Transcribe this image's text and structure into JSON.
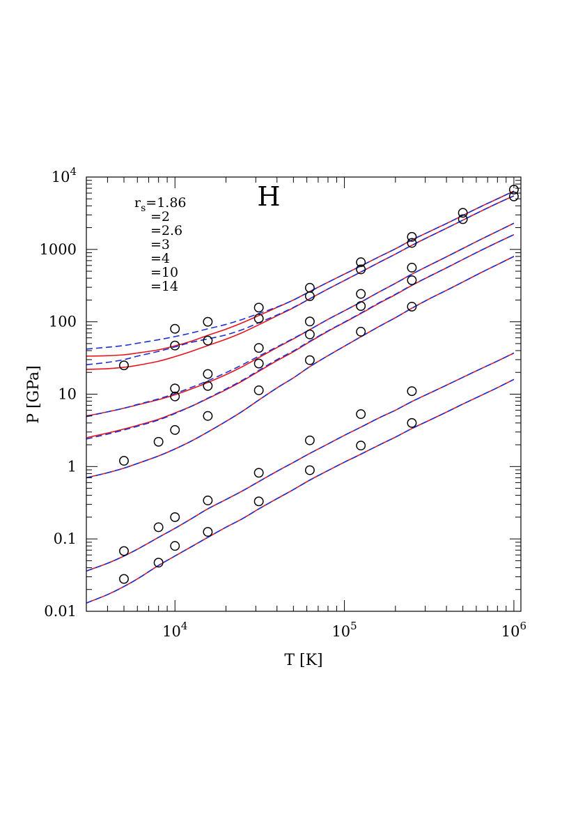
{
  "chart_data": {
    "type": "line",
    "title": "",
    "annotation": "H",
    "xlabel": "T [K]",
    "ylabel": "P [GPa]",
    "xscale": "log",
    "yscale": "log",
    "xlim": [
      3000,
      1100000
    ],
    "ylim": [
      0.01,
      10000
    ],
    "grid": false,
    "x_ticks": [
      {
        "value": 10000,
        "base": "10",
        "exp": "4"
      },
      {
        "value": 100000,
        "base": "10",
        "exp": "5"
      },
      {
        "value": 1000000,
        "base": "10",
        "exp": "6"
      }
    ],
    "y_ticks": [
      {
        "value": 0.01,
        "label": "0.01"
      },
      {
        "value": 0.1,
        "label": "0.1"
      },
      {
        "value": 1,
        "label": "1"
      },
      {
        "value": 10,
        "label": "10"
      },
      {
        "value": 100,
        "label": "100"
      },
      {
        "value": 1000,
        "label": "1000"
      },
      {
        "value": 10000,
        "base": "10",
        "exp": "4"
      }
    ],
    "legend": {
      "placement": "top-left",
      "symbol": "r",
      "subscript": "s",
      "entries": [
        "=1.86",
        "=2",
        "=2.6",
        "=3",
        "=4",
        "=10",
        "=14"
      ]
    },
    "colors": {
      "model_solid": "#e8141c",
      "model_dashed": "#1a2fd6",
      "points": "#000000"
    },
    "x_grid": [
      3000,
      4000,
      5000,
      6000,
      8000,
      10000,
      12500,
      15625,
      20000,
      25000,
      31250,
      40000,
      50000,
      62500,
      80000,
      100000,
      125000,
      160000,
      200000,
      250000,
      320000,
      400000,
      500000,
      640000,
      800000,
      1000000
    ],
    "series": [
      {
        "name": "1.86",
        "solid": [
          33.5,
          34.0,
          35.0,
          37.0,
          41.0,
          46.5,
          54.0,
          65.0,
          79.0,
          97.0,
          122.0,
          158.0,
          200.0,
          262.0,
          352.0,
          456.0,
          590.0,
          790.0,
          1020.0,
          1350.0,
          1780.0,
          2280.0,
          2950.0,
          3920.0,
          5000.0,
          6400.0
        ],
        "dashed": [
          42.0,
          44.5,
          47.0,
          50.5,
          56.5,
          62.5,
          70.0,
          80.0,
          92.0,
          108.0,
          130.0,
          160.0,
          200.0,
          262.0,
          352.0,
          456.0,
          590.0,
          790.0,
          1020.0,
          1350.0,
          1780.0,
          2280.0,
          2950.0,
          3920.0,
          5000.0,
          6400.0
        ],
        "points": [
          [
            10000,
            80.0
          ],
          [
            15625,
            100.0
          ],
          [
            31250,
            157.0
          ],
          [
            62500,
            295.0
          ],
          [
            125000,
            665.0
          ],
          [
            250000,
            1490.0
          ],
          [
            500000,
            3200.0
          ],
          [
            1000000,
            6700.0
          ]
        ]
      },
      {
        "name": "2",
        "solid": [
          22.0,
          22.5,
          23.5,
          25.0,
          28.5,
          33.0,
          39.0,
          47.0,
          57.5,
          71.0,
          91.0,
          121.0,
          156.0,
          208.0,
          284.0,
          372.0,
          488.0,
          660.0,
          862.0,
          1140.0,
          1520.0,
          1960.0,
          2540.0,
          3380.0,
          4340.0,
          5500.0
        ],
        "dashed": [
          25.5,
          27.5,
          30.0,
          33.5,
          39.0,
          45.0,
          52.0,
          58.0,
          66.0,
          78.0,
          97.0,
          124.0,
          158.0,
          208.0,
          284.0,
          372.0,
          488.0,
          660.0,
          862.0,
          1140.0,
          1520.0,
          1960.0,
          2540.0,
          3380.0,
          4340.0,
          5500.0
        ],
        "points": [
          [
            5000,
            25.0
          ],
          [
            10000,
            47.0
          ],
          [
            15625,
            55.0
          ],
          [
            31250,
            111.0
          ],
          [
            62500,
            226.0
          ],
          [
            125000,
            530.0
          ],
          [
            250000,
            1230.0
          ],
          [
            500000,
            2620.0
          ],
          [
            1000000,
            5400.0
          ]
        ]
      },
      {
        "name": "2.6",
        "solid": [
          5.0,
          5.7,
          6.4,
          7.1,
          8.4,
          9.8,
          11.8,
          14.5,
          18.6,
          24.0,
          32.0,
          44.0,
          58.0,
          78.0,
          108.0,
          142.0,
          187.0,
          258.0,
          340.0,
          455.0,
          610.0,
          790.0,
          1030.0,
          1380.0,
          1780.0,
          2300.0
        ],
        "dashed": [
          4.9,
          5.7,
          6.4,
          7.2,
          8.6,
          10.2,
          12.4,
          15.3,
          19.8,
          25.5,
          33.5,
          45.0,
          59.0,
          78.0,
          108.0,
          142.0,
          187.0,
          258.0,
          340.0,
          455.0,
          610.0,
          790.0,
          1030.0,
          1380.0,
          1780.0,
          2300.0
        ],
        "points": [
          [
            10000,
            12.0
          ],
          [
            15625,
            19.0
          ],
          [
            31250,
            43.5
          ],
          [
            62500,
            101.0
          ],
          [
            125000,
            243.0
          ],
          [
            250000,
            560.0
          ]
        ]
      },
      {
        "name": "3",
        "solid": [
          2.5,
          2.9,
          3.3,
          3.7,
          4.5,
          5.5,
          6.8,
          8.7,
          11.5,
          15.2,
          20.7,
          29.0,
          38.5,
          53.0,
          74.0,
          98.0,
          130.0,
          180.0,
          237.0,
          318.0,
          428.0,
          555.0,
          725.0,
          970.0,
          1250.0,
          1600.0
        ],
        "dashed": [
          2.4,
          2.8,
          3.2,
          3.6,
          4.4,
          5.4,
          6.8,
          8.8,
          11.8,
          15.6,
          21.3,
          30.0,
          39.5,
          54.0,
          75.0,
          99.0,
          132.0,
          183.0,
          240.0,
          321.0,
          430.0,
          557.0,
          727.0,
          972.0,
          1252.0,
          1600.0
        ],
        "points": [
          [
            10000,
            9.3
          ],
          [
            15625,
            13.0
          ],
          [
            31250,
            26.5
          ],
          [
            62500,
            67.0
          ],
          [
            125000,
            165.0
          ],
          [
            250000,
            375.0
          ]
        ]
      },
      {
        "name": "4",
        "solid": [
          0.7,
          0.82,
          0.95,
          1.1,
          1.4,
          1.75,
          2.25,
          3.0,
          4.2,
          5.8,
          8.3,
          12.2,
          16.8,
          24.0,
          34.0,
          46.0,
          62.0,
          86.0,
          114.0,
          154.0,
          210.0,
          272.0,
          355.0,
          478.0,
          618.0,
          800.0
        ],
        "dashed": [
          0.7,
          0.82,
          0.95,
          1.1,
          1.4,
          1.75,
          2.25,
          3.0,
          4.2,
          5.8,
          8.3,
          12.2,
          16.8,
          24.0,
          34.0,
          46.0,
          62.0,
          86.0,
          114.0,
          154.0,
          210.0,
          272.0,
          355.0,
          478.0,
          618.0,
          800.0
        ],
        "points": [
          [
            5000,
            1.2
          ],
          [
            8000,
            2.2
          ],
          [
            10000,
            3.2
          ],
          [
            15625,
            5.0
          ],
          [
            31250,
            11.3
          ],
          [
            62500,
            29.5
          ],
          [
            125000,
            73.0
          ],
          [
            250000,
            162.0
          ]
        ]
      },
      {
        "name": "10",
        "solid": [
          0.036,
          0.046,
          0.058,
          0.072,
          0.105,
          0.14,
          0.19,
          0.26,
          0.35,
          0.46,
          0.62,
          0.86,
          1.14,
          1.52,
          2.05,
          2.7,
          3.5,
          4.7,
          6.0,
          7.9,
          10.4,
          13.3,
          17.1,
          22.5,
          28.7,
          37.0
        ],
        "dashed": [
          0.036,
          0.046,
          0.058,
          0.072,
          0.105,
          0.14,
          0.19,
          0.26,
          0.35,
          0.46,
          0.62,
          0.86,
          1.14,
          1.52,
          2.05,
          2.7,
          3.5,
          4.7,
          6.0,
          7.9,
          10.4,
          13.3,
          17.1,
          22.5,
          28.7,
          37.0
        ],
        "points": [
          [
            5000,
            0.068
          ],
          [
            8000,
            0.145
          ],
          [
            10000,
            0.2
          ],
          [
            15625,
            0.34
          ],
          [
            31250,
            0.82
          ],
          [
            62500,
            2.3
          ],
          [
            125000,
            5.3
          ],
          [
            250000,
            11.0
          ]
        ]
      },
      {
        "name": "14",
        "solid": [
          0.013,
          0.017,
          0.022,
          0.028,
          0.043,
          0.058,
          0.078,
          0.105,
          0.145,
          0.19,
          0.26,
          0.36,
          0.48,
          0.65,
          0.88,
          1.15,
          1.48,
          1.98,
          2.55,
          3.35,
          4.4,
          5.65,
          7.3,
          9.6,
          12.3,
          16.0
        ],
        "dashed": [
          0.013,
          0.017,
          0.022,
          0.028,
          0.043,
          0.058,
          0.078,
          0.105,
          0.145,
          0.19,
          0.26,
          0.36,
          0.48,
          0.65,
          0.88,
          1.15,
          1.48,
          1.98,
          2.55,
          3.35,
          4.4,
          5.65,
          7.3,
          9.6,
          12.3,
          16.0
        ],
        "points": [
          [
            5000,
            0.028
          ],
          [
            8000,
            0.047
          ],
          [
            10000,
            0.08
          ],
          [
            15625,
            0.125
          ],
          [
            31250,
            0.33
          ],
          [
            62500,
            0.89
          ],
          [
            125000,
            1.95
          ],
          [
            250000,
            4.0
          ]
        ]
      }
    ]
  }
}
